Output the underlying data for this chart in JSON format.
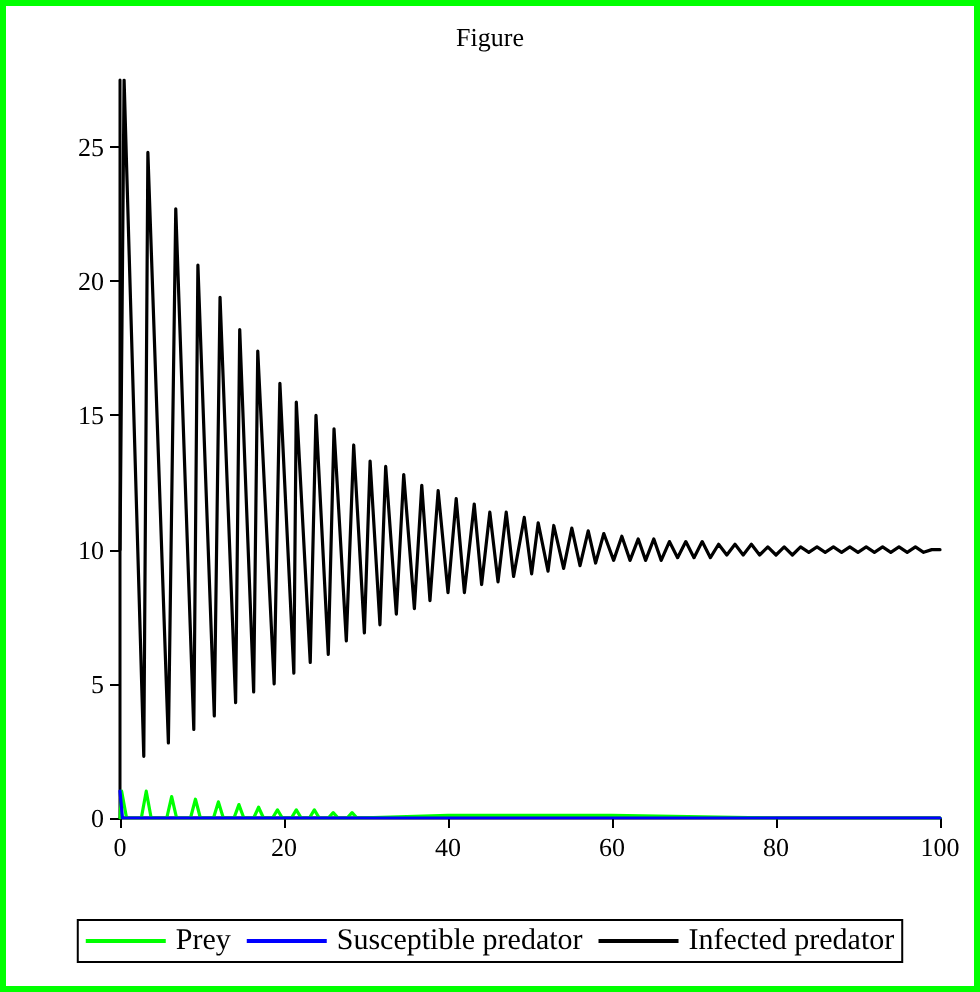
{
  "chart_data": {
    "type": "line",
    "title": "Figure",
    "xlim": [
      0,
      100
    ],
    "xticks": [
      0,
      20,
      40,
      60,
      80,
      100
    ],
    "ylim": [
      0,
      27.5
    ],
    "yticks": [
      0,
      5,
      10,
      15,
      20,
      25
    ],
    "grid": false,
    "legend": "bottom",
    "marker": "none",
    "line_style": "solid",
    "series": [
      {
        "name": "Prey",
        "color": "#00ff00",
        "x": [
          0,
          0.2,
          0.8,
          2.6,
          3.2,
          3.8,
          5.7,
          6.3,
          6.9,
          8.6,
          9.2,
          9.8,
          11.4,
          12.0,
          12.6,
          13.9,
          14.5,
          15.1,
          16.3,
          16.9,
          17.5,
          18.6,
          19.2,
          19.8,
          20.9,
          21.5,
          22.1,
          23.1,
          23.7,
          24.3,
          25.4,
          26.0,
          26.6,
          27.7,
          28.3,
          28.9,
          40,
          60,
          80,
          100
        ],
        "values": [
          0,
          1.0,
          0,
          0,
          1.0,
          0,
          0,
          0.8,
          0,
          0,
          0.7,
          0,
          0,
          0.6,
          0,
          0,
          0.5,
          0,
          0,
          0.4,
          0,
          0,
          0.3,
          0,
          0,
          0.3,
          0,
          0,
          0.3,
          0,
          0,
          0.2,
          0,
          0,
          0.2,
          0,
          0.1,
          0.1,
          0,
          0
        ]
      },
      {
        "name": "Susceptible predator",
        "color": "#0000ff",
        "x": [
          0,
          0.3,
          100
        ],
        "values": [
          1.0,
          0,
          0
        ]
      },
      {
        "name": "Infected predator",
        "color": "#000000",
        "x": [
          0,
          0.5,
          2.9,
          3.4,
          5.9,
          6.8,
          9.0,
          9.5,
          11.5,
          12.2,
          14.1,
          14.6,
          16.3,
          16.8,
          18.8,
          19.5,
          21.2,
          21.5,
          23.2,
          23.9,
          25.4,
          26.1,
          27.6,
          28.5,
          29.8,
          30.5,
          31.7,
          32.4,
          33.7,
          34.6,
          35.9,
          36.8,
          37.8,
          38.8,
          40.0,
          41.0,
          42.0,
          43.2,
          44.1,
          45.1,
          46.1,
          47.1,
          48.0,
          49.3,
          50.2,
          51.0,
          52.2,
          52.9,
          54.1,
          55.1,
          56.1,
          57.1,
          58.0,
          59.0,
          60.2,
          61.2,
          62.2,
          63.2,
          64.1,
          65.1,
          66.0,
          67.0,
          68.0,
          69.0,
          70.0,
          71.0,
          72.0,
          73.0,
          74.0,
          75.0,
          76.0,
          77.0,
          78.0,
          79.0,
          80.0,
          81.0,
          82.0,
          83.0,
          84.0,
          85.0,
          86.0,
          87.0,
          88.0,
          89.0,
          90.0,
          91.0,
          92.0,
          93.0,
          94.0,
          95.0,
          96.0,
          97.0,
          98.0,
          99.0,
          100.0
        ],
        "values": [
          10,
          27.5,
          2.3,
          24.8,
          2.8,
          22.7,
          3.3,
          20.6,
          3.8,
          19.4,
          4.3,
          18.2,
          4.7,
          17.4,
          5.0,
          16.2,
          5.4,
          15.5,
          5.8,
          15.0,
          6.1,
          14.5,
          6.6,
          13.9,
          6.9,
          13.3,
          7.2,
          13.1,
          7.6,
          12.8,
          7.8,
          12.4,
          8.1,
          12.2,
          8.4,
          11.9,
          8.4,
          11.7,
          8.7,
          11.4,
          8.8,
          11.4,
          9.0,
          11.2,
          9.1,
          11.0,
          9.2,
          10.9,
          9.3,
          10.8,
          9.4,
          10.7,
          9.5,
          10.6,
          9.6,
          10.5,
          9.6,
          10.4,
          9.6,
          10.4,
          9.6,
          10.3,
          9.7,
          10.3,
          9.7,
          10.3,
          9.7,
          10.2,
          9.8,
          10.2,
          9.8,
          10.2,
          9.8,
          10.1,
          9.8,
          10.1,
          9.8,
          10.1,
          9.9,
          10.1,
          9.9,
          10.1,
          9.9,
          10.1,
          9.9,
          10.1,
          9.9,
          10.1,
          9.9,
          10.1,
          9.9,
          10.1,
          9.9,
          10.0,
          10.0
        ]
      }
    ]
  }
}
